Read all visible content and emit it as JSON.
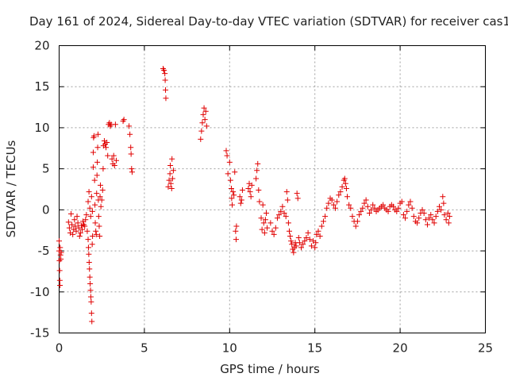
{
  "chart_data": {
    "type": "scatter",
    "title": "Day 161 of 2024, Sidereal Day-to-day VTEC variation (SDTVAR) for receiver cas1",
    "xlabel": "GPS time / hours",
    "ylabel": "SDTVAR / TECUs",
    "xlim": [
      0,
      25
    ],
    "ylim": [
      -15,
      20
    ],
    "xticks": [
      0,
      5,
      10,
      15,
      20,
      25
    ],
    "yticks": [
      -15,
      -10,
      -5,
      0,
      5,
      10,
      15,
      20
    ],
    "grid": true,
    "marker": "+",
    "color": "#e00000",
    "series": [
      {
        "name": "cas1",
        "points": [
          [
            0.0,
            -3.8
          ],
          [
            0.0,
            -5.0
          ],
          [
            0.02,
            -6.2
          ],
          [
            0.03,
            -7.4
          ],
          [
            0.04,
            -8.6
          ],
          [
            0.05,
            -9.2
          ],
          [
            0.06,
            -4.6
          ],
          [
            0.08,
            -5.5
          ],
          [
            0.1,
            -6.0
          ],
          [
            0.12,
            -5.2
          ],
          [
            0.55,
            -1.5
          ],
          [
            0.6,
            -2.2
          ],
          [
            0.65,
            -2.8
          ],
          [
            0.7,
            -0.5
          ],
          [
            0.75,
            -1.8
          ],
          [
            0.8,
            -3.0
          ],
          [
            0.85,
            -2.4
          ],
          [
            0.9,
            -1.2
          ],
          [
            0.95,
            -2.0
          ],
          [
            1.0,
            -2.6
          ],
          [
            1.05,
            -0.8
          ],
          [
            1.1,
            -1.6
          ],
          [
            1.15,
            -2.2
          ],
          [
            1.2,
            -3.2
          ],
          [
            1.25,
            -2.8
          ],
          [
            1.3,
            -1.9
          ],
          [
            1.35,
            -2.4
          ],
          [
            1.4,
            -1.4
          ],
          [
            1.45,
            -1.8
          ],
          [
            1.5,
            -2.0
          ],
          [
            1.55,
            -1.2
          ],
          [
            1.6,
            -0.6
          ],
          [
            1.65,
            -2.6
          ],
          [
            1.7,
            -3.6
          ],
          [
            1.72,
            -4.6
          ],
          [
            1.74,
            -5.4
          ],
          [
            1.76,
            -6.4
          ],
          [
            1.78,
            -7.2
          ],
          [
            1.8,
            -8.2
          ],
          [
            1.82,
            -9.0
          ],
          [
            1.84,
            -9.8
          ],
          [
            1.86,
            -10.6
          ],
          [
            1.88,
            -11.2
          ],
          [
            1.9,
            -12.6
          ],
          [
            1.92,
            -13.6
          ],
          [
            1.94,
            -4.2
          ],
          [
            1.96,
            -3.2
          ],
          [
            1.7,
            1.0
          ],
          [
            1.75,
            2.2
          ],
          [
            1.8,
            0.2
          ],
          [
            1.85,
            -0.8
          ],
          [
            1.9,
            1.6
          ],
          [
            1.95,
            -0.2
          ],
          [
            2.0,
            5.2
          ],
          [
            2.0,
            7.0
          ],
          [
            2.02,
            8.8
          ],
          [
            2.05,
            9.0
          ],
          [
            2.08,
            3.6
          ],
          [
            2.1,
            0.6
          ],
          [
            2.12,
            -1.6
          ],
          [
            2.15,
            -2.6
          ],
          [
            2.18,
            -3.0
          ],
          [
            2.2,
            2.0
          ],
          [
            2.22,
            4.2
          ],
          [
            2.24,
            5.8
          ],
          [
            2.26,
            7.6
          ],
          [
            2.28,
            9.2
          ],
          [
            2.3,
            1.2
          ],
          [
            2.32,
            -0.8
          ],
          [
            2.35,
            -2.0
          ],
          [
            2.38,
            -3.2
          ],
          [
            2.4,
            1.6
          ],
          [
            2.42,
            3.0
          ],
          [
            2.45,
            0.4
          ],
          [
            2.5,
            1.2
          ],
          [
            2.55,
            2.4
          ],
          [
            2.58,
            5.0
          ],
          [
            2.6,
            7.8
          ],
          [
            2.65,
            8.4
          ],
          [
            2.7,
            8.0
          ],
          [
            2.75,
            7.6
          ],
          [
            2.8,
            8.2
          ],
          [
            2.85,
            6.6
          ],
          [
            2.9,
            10.4
          ],
          [
            2.95,
            10.6
          ],
          [
            3.0,
            10.2
          ],
          [
            3.05,
            10.4
          ],
          [
            3.1,
            6.2
          ],
          [
            3.15,
            5.6
          ],
          [
            3.2,
            6.6
          ],
          [
            3.25,
            5.4
          ],
          [
            3.3,
            10.4
          ],
          [
            3.35,
            6.0
          ],
          [
            3.75,
            10.8
          ],
          [
            3.8,
            11.0
          ],
          [
            4.1,
            10.2
          ],
          [
            4.15,
            9.2
          ],
          [
            4.2,
            7.6
          ],
          [
            4.22,
            6.8
          ],
          [
            4.25,
            5.0
          ],
          [
            4.28,
            4.6
          ],
          [
            6.1,
            17.2
          ],
          [
            6.15,
            17.0
          ],
          [
            6.2,
            16.6
          ],
          [
            6.22,
            15.8
          ],
          [
            6.24,
            14.6
          ],
          [
            6.26,
            13.6
          ],
          [
            6.4,
            2.8
          ],
          [
            6.45,
            3.6
          ],
          [
            6.5,
            4.4
          ],
          [
            6.52,
            5.4
          ],
          [
            6.55,
            3.2
          ],
          [
            6.6,
            2.6
          ],
          [
            6.62,
            6.2
          ],
          [
            6.65,
            3.8
          ],
          [
            6.7,
            4.8
          ],
          [
            8.3,
            8.6
          ],
          [
            8.35,
            9.6
          ],
          [
            8.4,
            10.6
          ],
          [
            8.45,
            11.6
          ],
          [
            8.5,
            12.4
          ],
          [
            8.55,
            11.0
          ],
          [
            8.6,
            12.0
          ],
          [
            8.65,
            10.2
          ],
          [
            9.8,
            7.2
          ],
          [
            9.85,
            6.6
          ],
          [
            9.9,
            4.4
          ],
          [
            10.0,
            5.8
          ],
          [
            10.05,
            3.6
          ],
          [
            10.1,
            2.6
          ],
          [
            10.12,
            1.4
          ],
          [
            10.15,
            0.6
          ],
          [
            10.2,
            2.2
          ],
          [
            10.25,
            1.8
          ],
          [
            10.3,
            4.6
          ],
          [
            10.35,
            -2.6
          ],
          [
            10.38,
            -3.6
          ],
          [
            10.4,
            -2.0
          ],
          [
            10.6,
            1.6
          ],
          [
            10.65,
            0.8
          ],
          [
            10.7,
            1.2
          ],
          [
            10.75,
            2.4
          ],
          [
            11.1,
            2.6
          ],
          [
            11.15,
            3.2
          ],
          [
            11.2,
            2.2
          ],
          [
            11.25,
            1.6
          ],
          [
            11.3,
            3.0
          ],
          [
            11.55,
            3.8
          ],
          [
            11.6,
            4.8
          ],
          [
            11.65,
            5.6
          ],
          [
            11.7,
            2.4
          ],
          [
            11.75,
            1.0
          ],
          [
            11.85,
            -1.0
          ],
          [
            11.9,
            -2.4
          ],
          [
            11.95,
            0.6
          ],
          [
            12.0,
            -1.6
          ],
          [
            12.05,
            -2.8
          ],
          [
            12.1,
            -1.2
          ],
          [
            12.15,
            -0.4
          ],
          [
            12.2,
            -2.2
          ],
          [
            12.4,
            -1.6
          ],
          [
            12.5,
            -2.6
          ],
          [
            12.6,
            -3.0
          ],
          [
            12.7,
            -2.2
          ],
          [
            12.8,
            -1.0
          ],
          [
            12.9,
            -0.6
          ],
          [
            13.0,
            -0.2
          ],
          [
            13.1,
            0.4
          ],
          [
            13.2,
            -0.4
          ],
          [
            13.3,
            -0.8
          ],
          [
            13.35,
            2.2
          ],
          [
            13.4,
            1.2
          ],
          [
            13.45,
            -1.6
          ],
          [
            13.5,
            -2.6
          ],
          [
            13.55,
            -3.2
          ],
          [
            13.6,
            -3.8
          ],
          [
            13.65,
            -4.2
          ],
          [
            13.7,
            -4.8
          ],
          [
            13.75,
            -5.2
          ],
          [
            13.8,
            -4.6
          ],
          [
            13.85,
            -4.0
          ],
          [
            13.9,
            -4.4
          ],
          [
            13.95,
            2.0
          ],
          [
            14.0,
            1.4
          ],
          [
            14.05,
            -3.4
          ],
          [
            14.1,
            -4.0
          ],
          [
            14.2,
            -4.6
          ],
          [
            14.3,
            -4.2
          ],
          [
            14.4,
            -3.8
          ],
          [
            14.5,
            -3.4
          ],
          [
            14.6,
            -2.8
          ],
          [
            14.7,
            -3.6
          ],
          [
            14.8,
            -4.4
          ],
          [
            14.9,
            -3.8
          ],
          [
            15.0,
            -4.6
          ],
          [
            15.05,
            -4.0
          ],
          [
            15.1,
            -3.0
          ],
          [
            15.2,
            -2.6
          ],
          [
            15.3,
            -3.2
          ],
          [
            15.4,
            -2.0
          ],
          [
            15.5,
            -1.4
          ],
          [
            15.6,
            -0.8
          ],
          [
            15.7,
            0.2
          ],
          [
            15.8,
            0.8
          ],
          [
            15.9,
            1.4
          ],
          [
            16.0,
            1.2
          ],
          [
            16.1,
            0.6
          ],
          [
            16.2,
            0.2
          ],
          [
            16.3,
            1.0
          ],
          [
            16.4,
            1.8
          ],
          [
            16.5,
            2.2
          ],
          [
            16.6,
            2.8
          ],
          [
            16.7,
            3.6
          ],
          [
            16.75,
            3.8
          ],
          [
            16.8,
            3.2
          ],
          [
            16.85,
            2.6
          ],
          [
            16.9,
            1.6
          ],
          [
            17.0,
            0.6
          ],
          [
            17.1,
            0.2
          ],
          [
            17.2,
            -0.8
          ],
          [
            17.3,
            -1.4
          ],
          [
            17.4,
            -2.0
          ],
          [
            17.5,
            -1.4
          ],
          [
            17.6,
            -0.6
          ],
          [
            17.7,
            -0.2
          ],
          [
            17.8,
            0.2
          ],
          [
            17.9,
            0.8
          ],
          [
            18.0,
            1.2
          ],
          [
            18.1,
            0.4
          ],
          [
            18.2,
            -0.4
          ],
          [
            18.3,
            0.0
          ],
          [
            18.4,
            0.6
          ],
          [
            18.5,
            0.2
          ],
          [
            18.6,
            -0.2
          ],
          [
            18.7,
            0.0
          ],
          [
            18.8,
            0.2
          ],
          [
            18.9,
            0.4
          ],
          [
            19.0,
            0.6
          ],
          [
            19.1,
            0.2
          ],
          [
            19.2,
            0.0
          ],
          [
            19.3,
            -0.2
          ],
          [
            19.4,
            0.4
          ],
          [
            19.5,
            0.6
          ],
          [
            19.6,
            0.4
          ],
          [
            19.7,
            0.0
          ],
          [
            19.8,
            -0.2
          ],
          [
            19.9,
            0.2
          ],
          [
            20.0,
            0.8
          ],
          [
            20.1,
            1.0
          ],
          [
            20.2,
            -0.6
          ],
          [
            20.3,
            -1.0
          ],
          [
            20.4,
            -0.2
          ],
          [
            20.5,
            0.6
          ],
          [
            20.6,
            1.0
          ],
          [
            20.7,
            0.2
          ],
          [
            20.8,
            -0.8
          ],
          [
            20.9,
            -1.4
          ],
          [
            21.0,
            -1.6
          ],
          [
            21.1,
            -1.0
          ],
          [
            21.2,
            -0.4
          ],
          [
            21.3,
            0.0
          ],
          [
            21.4,
            -0.4
          ],
          [
            21.5,
            -1.2
          ],
          [
            21.6,
            -1.8
          ],
          [
            21.7,
            -1.0
          ],
          [
            21.8,
            -0.6
          ],
          [
            21.9,
            -1.2
          ],
          [
            22.0,
            -1.6
          ],
          [
            22.1,
            -0.8
          ],
          [
            22.2,
            -0.2
          ],
          [
            22.3,
            0.4
          ],
          [
            22.4,
            0.0
          ],
          [
            22.5,
            1.6
          ],
          [
            22.55,
            0.8
          ],
          [
            22.6,
            -0.6
          ],
          [
            22.7,
            -1.2
          ],
          [
            22.8,
            -0.4
          ],
          [
            22.85,
            -1.6
          ],
          [
            22.9,
            -0.8
          ]
        ]
      }
    ]
  }
}
